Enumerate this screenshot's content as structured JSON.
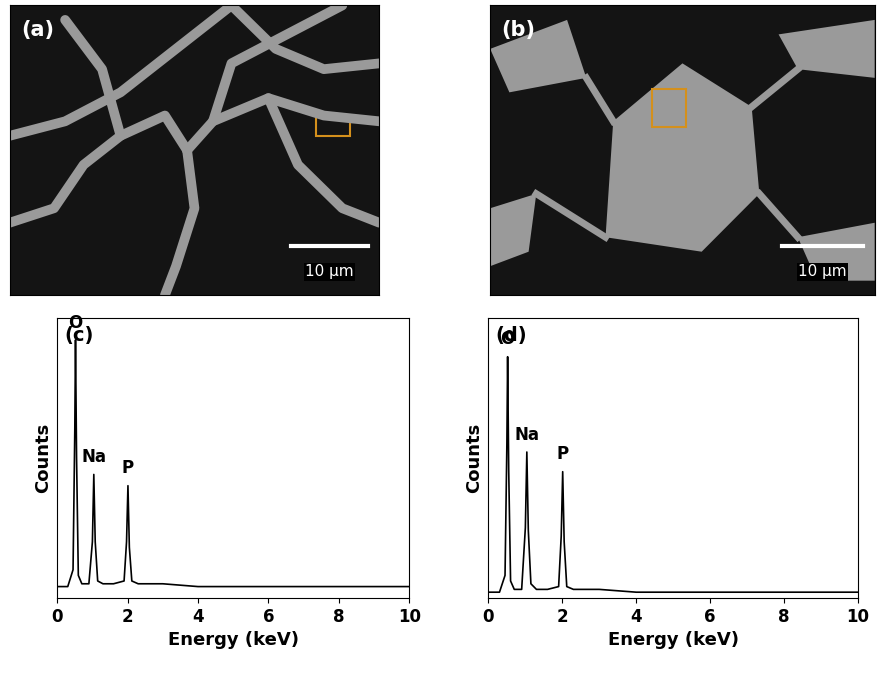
{
  "images": [
    {
      "label": "(a)",
      "scale_bar": "10 μm"
    },
    {
      "label": "(b)",
      "scale_bar": "10 μm"
    }
  ],
  "chart_data": [
    {
      "type": "line",
      "title": "(c)",
      "x_label": "Energy (keV)",
      "y_label": "Counts",
      "xlim": [
        0,
        10
      ],
      "xticks": [
        0,
        2,
        4,
        6,
        8,
        10
      ],
      "ylim": [
        0,
        100
      ],
      "tick_labels": "x",
      "color": "#000000",
      "x": [
        0,
        0.3,
        0.45,
        0.5,
        0.52,
        0.55,
        0.6,
        0.7,
        0.9,
        1.0,
        1.04,
        1.08,
        1.15,
        1.3,
        1.6,
        1.9,
        1.97,
        2.01,
        2.05,
        2.12,
        2.3,
        3,
        4,
        5,
        6,
        7,
        8,
        9,
        10
      ],
      "values": [
        4,
        4,
        10,
        60,
        92,
        50,
        8,
        5,
        5,
        20,
        44,
        20,
        6,
        5,
        5,
        6,
        20,
        40,
        18,
        6,
        5,
        5,
        4,
        4,
        4,
        4,
        4,
        4,
        4
      ],
      "annotations": [
        {
          "text": "O",
          "x": 0.52,
          "y": 95
        },
        {
          "text": "Na",
          "x": 1.04,
          "y": 47
        },
        {
          "text": "P",
          "x": 2.01,
          "y": 43
        }
      ]
    },
    {
      "type": "line",
      "title": "(d)",
      "x_label": "Energy (keV)",
      "y_label": "Counts",
      "xlim": [
        0,
        10
      ],
      "xticks": [
        0,
        2,
        4,
        6,
        8,
        10
      ],
      "ylim": [
        0,
        100
      ],
      "tick_labels": "x",
      "color": "#000000",
      "x": [
        0,
        0.3,
        0.45,
        0.5,
        0.52,
        0.55,
        0.6,
        0.7,
        0.9,
        1.0,
        1.04,
        1.08,
        1.15,
        1.3,
        1.6,
        1.9,
        1.97,
        2.01,
        2.05,
        2.12,
        2.3,
        3,
        4,
        5,
        6,
        7,
        8,
        9,
        10
      ],
      "values": [
        2,
        2,
        8,
        55,
        86,
        45,
        6,
        3,
        3,
        25,
        52,
        24,
        5,
        3,
        3,
        4,
        22,
        45,
        20,
        4,
        3,
        3,
        2,
        2,
        2,
        2,
        2,
        2,
        2
      ],
      "annotations": [
        {
          "text": "O",
          "x": 0.52,
          "y": 89
        },
        {
          "text": "Na",
          "x": 1.04,
          "y": 55
        },
        {
          "text": "P",
          "x": 2.01,
          "y": 48
        }
      ]
    }
  ]
}
